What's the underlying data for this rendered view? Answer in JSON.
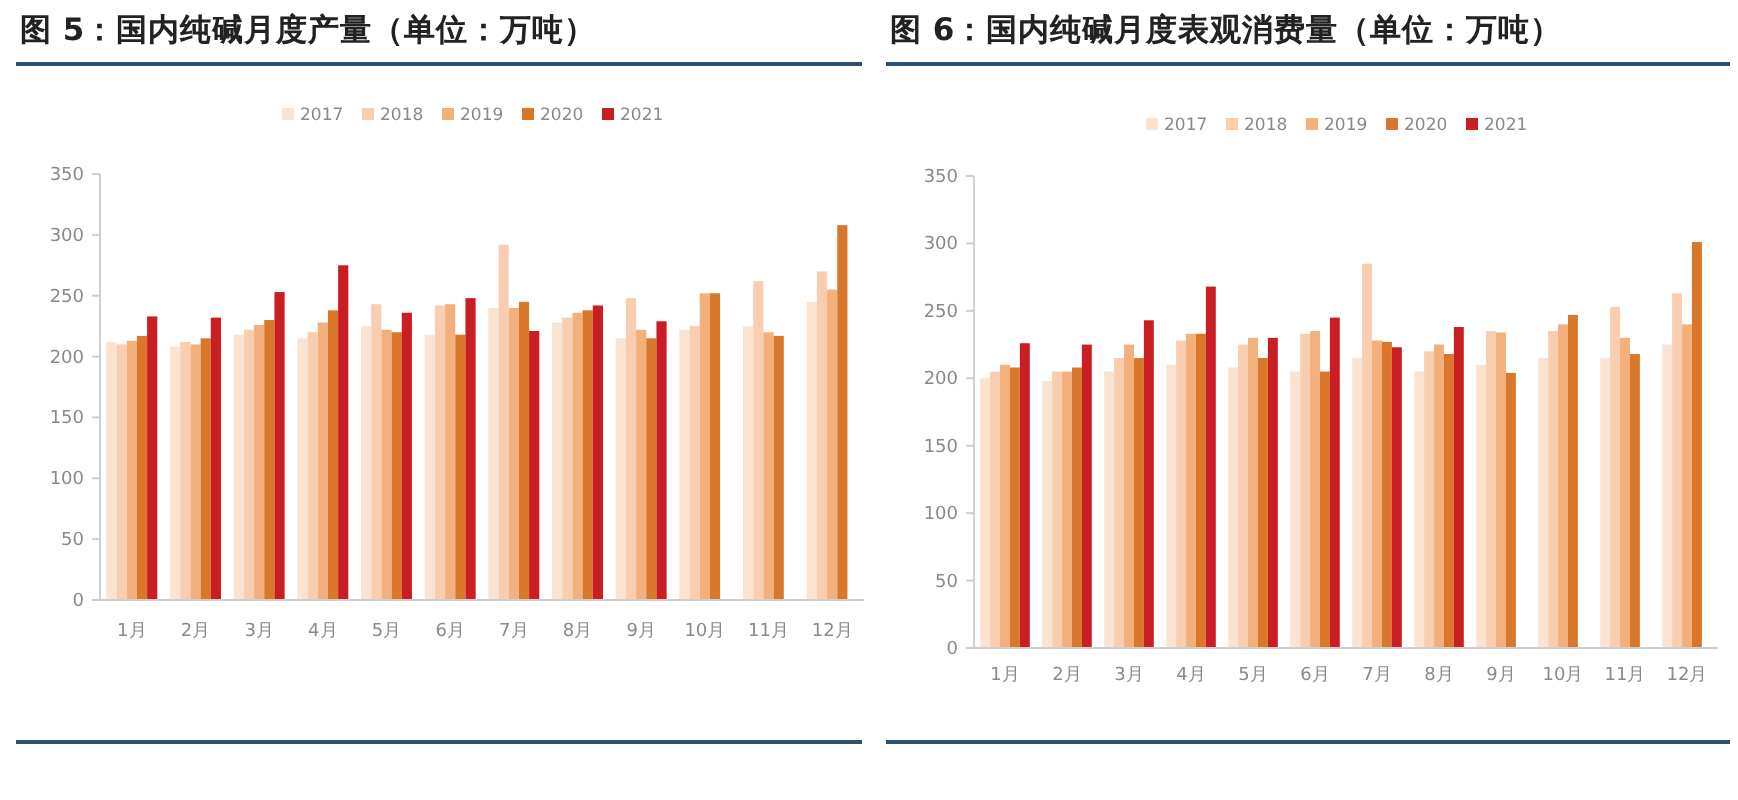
{
  "chart_data": [
    {
      "type": "bar",
      "title": "图 5：国内纯碱月度产量（单位：万吨）",
      "categories": [
        "1月",
        "2月",
        "3月",
        "4月",
        "5月",
        "6月",
        "7月",
        "8月",
        "9月",
        "10月",
        "11月",
        "12月"
      ],
      "series": [
        {
          "name": "2017",
          "color": "#fbe3d2",
          "values": [
            212,
            208,
            218,
            215,
            225,
            218,
            240,
            228,
            215,
            222,
            225,
            245
          ]
        },
        {
          "name": "2018",
          "color": "#f8cdb0",
          "values": [
            210,
            212,
            222,
            220,
            243,
            242,
            292,
            232,
            248,
            225,
            262,
            270
          ]
        },
        {
          "name": "2019",
          "color": "#f4b07c",
          "values": [
            213,
            210,
            226,
            228,
            222,
            243,
            240,
            236,
            222,
            252,
            220,
            255
          ]
        },
        {
          "name": "2020",
          "color": "#d9772a",
          "values": [
            217,
            215,
            230,
            238,
            220,
            218,
            245,
            238,
            215,
            252,
            217,
            308
          ]
        },
        {
          "name": "2021",
          "color": "#c81e24",
          "values": [
            233,
            232,
            253,
            275,
            236,
            248,
            221,
            242,
            229,
            null,
            null,
            null
          ]
        }
      ],
      "ylim": [
        0,
        350
      ],
      "yticks": [
        0,
        50,
        100,
        150,
        200,
        250,
        300,
        350
      ],
      "legend": "top"
    },
    {
      "type": "bar",
      "title": "图 6：国内纯碱月度表观消费量（单位：万吨）",
      "categories": [
        "1月",
        "2月",
        "3月",
        "4月",
        "5月",
        "6月",
        "7月",
        "8月",
        "9月",
        "10月",
        "11月",
        "12月"
      ],
      "series": [
        {
          "name": "2017",
          "color": "#fbe3d2",
          "values": [
            200,
            198,
            205,
            210,
            208,
            205,
            215,
            205,
            210,
            215,
            215,
            225
          ]
        },
        {
          "name": "2018",
          "color": "#f8cdb0",
          "values": [
            205,
            205,
            215,
            228,
            225,
            233,
            285,
            220,
            235,
            235,
            253,
            263
          ]
        },
        {
          "name": "2019",
          "color": "#f4b07c",
          "values": [
            210,
            205,
            225,
            233,
            230,
            235,
            228,
            225,
            234,
            240,
            230,
            240
          ]
        },
        {
          "name": "2020",
          "color": "#d9772a",
          "values": [
            208,
            208,
            215,
            233,
            215,
            205,
            227,
            218,
            204,
            247,
            218,
            301
          ]
        },
        {
          "name": "2021",
          "color": "#c81e24",
          "values": [
            226,
            225,
            243,
            268,
            230,
            245,
            223,
            238,
            null,
            null,
            null,
            null
          ]
        }
      ],
      "ylim": [
        0,
        350
      ],
      "yticks": [
        0,
        50,
        100,
        150,
        200,
        250,
        300,
        350
      ],
      "legend": "top"
    }
  ]
}
